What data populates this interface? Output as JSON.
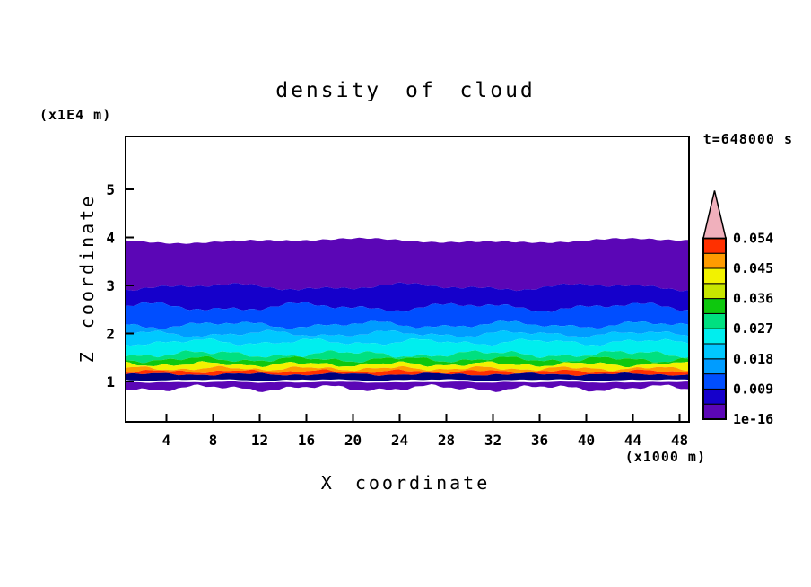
{
  "title": "density of cloud",
  "timestamp": "t=648000 s",
  "axes": {
    "x": {
      "label": "X coordinate",
      "unit": "(x1000 m)",
      "ticks": [
        4,
        8,
        12,
        16,
        20,
        24,
        28,
        32,
        36,
        40,
        44,
        48
      ]
    },
    "y": {
      "label": "Z coordinate",
      "unit": "(x1E4 m)",
      "ticks": [
        1,
        2,
        3,
        4,
        5
      ]
    }
  },
  "colorbar": {
    "labels_top_to_bottom": [
      "0.054",
      "0.045",
      "0.036",
      "0.027",
      "0.018",
      "0.009",
      "1e-16"
    ],
    "segment_colors_bottom_to_top": [
      "#5b06b6",
      "#1500cb",
      "#004eff",
      "#009cff",
      "#00c8ff",
      "#00eeee",
      "#00e080",
      "#0ec80e",
      "#c8e600",
      "#f2f200",
      "#ff9b00",
      "#ff3000"
    ],
    "arrow_color": "#f0b0bc",
    "border_color": "#000000"
  },
  "chart_data": {
    "type": "filled-contour",
    "title": "density of cloud",
    "xlabel": "X coordinate (x1000 m)",
    "ylabel": "Z coordinate (x1E4 m)",
    "time_label": "t=648000 s",
    "x_range": [
      0.5,
      48.8
    ],
    "z_range": [
      0.15,
      6.05
    ],
    "levels": [
      1e-16,
      0.009,
      0.018,
      0.027,
      0.036,
      0.045,
      0.054
    ],
    "description": "Horizontally layered cloud-density cross-section: density ~1e-16 at the cloud top near z=4 (x1E4 m), increasing through blue/cyan/green layers to a maximum around 0.045-0.054 in thin yellow/orange/red streaks near z=1.1, with a thin detached low-density (purple) layer just below z=1 and clear air elsewhere.",
    "boundaries": [
      {
        "z": 3.93,
        "amp": 0.035,
        "f1": 0.018,
        "p1": 1.0,
        "f2": 0.045,
        "p2": 2.0
      },
      {
        "z": 2.97,
        "amp": 0.05,
        "f1": 0.03,
        "p1": 0.5,
        "f2": 0.07,
        "p2": 1.5
      },
      {
        "z": 2.55,
        "amp": 0.06,
        "f1": 0.035,
        "p1": 2.2,
        "f2": 0.08,
        "p2": 0.3
      },
      {
        "z": 2.18,
        "amp": 0.05,
        "f1": 0.04,
        "p1": 4.0,
        "f2": 0.09,
        "p2": 1.1
      },
      {
        "z": 1.99,
        "amp": 0.045,
        "f1": 0.045,
        "p1": 0.8,
        "f2": 0.1,
        "p2": 2.6
      },
      {
        "z": 1.82,
        "amp": 0.045,
        "f1": 0.05,
        "p1": 3.1,
        "f2": 0.11,
        "p2": 0.9
      },
      {
        "z": 1.57,
        "amp": 0.05,
        "f1": 0.04,
        "p1": 5.0,
        "f2": 0.12,
        "p2": 1.8
      },
      {
        "z": 1.46,
        "amp": 0.04,
        "f1": 0.055,
        "p1": 2.0,
        "f2": 0.13,
        "p2": 3.2
      },
      {
        "z": 1.36,
        "amp": 0.035,
        "f1": 0.06,
        "p1": 0.3,
        "f2": 0.14,
        "p2": 1.2
      },
      {
        "z": 1.27,
        "amp": 0.03,
        "f1": 0.065,
        "p1": 4.4,
        "f2": 0.15,
        "p2": 2.8
      },
      {
        "z": 1.21,
        "amp": 0.025,
        "f1": 0.07,
        "p1": 1.7,
        "f2": 0.16,
        "p2": 0.4
      },
      {
        "z": 1.15,
        "amp": 0.02,
        "f1": 0.06,
        "p1": 3.9,
        "f2": 0.17,
        "p2": 2.1
      },
      {
        "z": 1.03,
        "amp": 0.012,
        "f1": 0.05,
        "p1": 2.5,
        "f2": 0.1,
        "p2": 1.0
      }
    ],
    "band_colors_top_to_bottom": [
      "#5b06b6",
      "#1500cb",
      "#004eff",
      "#009cff",
      "#00c8ff",
      "#00eeee",
      "#00e080",
      "#0ec80e",
      "#f2f200",
      "#ff9b00",
      "#ff3000",
      "#00007d"
    ],
    "detached_layer": {
      "color": "#5b06b6",
      "z_top": 0.99,
      "top_amp": 0.008,
      "z_bottom": 0.86,
      "bottom_amp": 0.045,
      "f1": 0.05,
      "p1": 0.6,
      "f2": 0.12,
      "p2": 2.3
    },
    "frame_color": "#000000",
    "background_color": "#ffffff"
  }
}
